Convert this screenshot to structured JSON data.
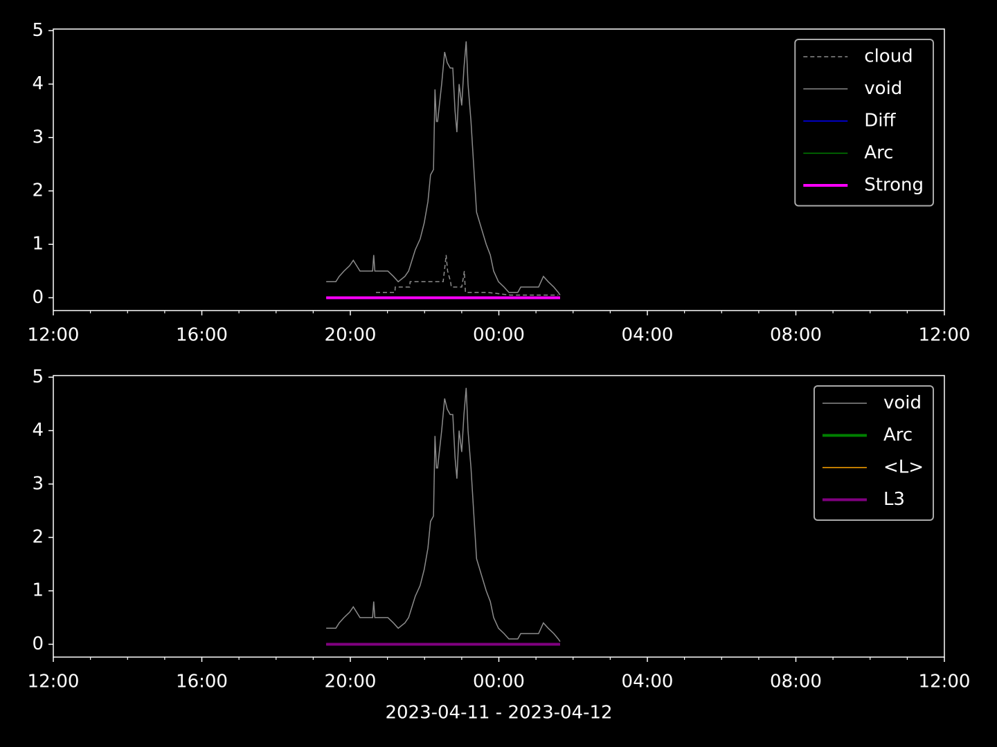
{
  "chart_data": [
    {
      "type": "line",
      "xlim": [
        0,
        24
      ],
      "ylim": [
        -0.24,
        5.03
      ],
      "xticks": [
        {
          "value": 0,
          "label": "12:00"
        },
        {
          "value": 4,
          "label": "16:00"
        },
        {
          "value": 8,
          "label": "20:00"
        },
        {
          "value": 12,
          "label": "00:00"
        },
        {
          "value": 16,
          "label": "04:00"
        },
        {
          "value": 20,
          "label": "08:00"
        },
        {
          "value": 24,
          "label": "12:00"
        }
      ],
      "xminorticks": [
        1,
        2,
        3,
        5,
        6,
        7,
        9,
        10,
        11,
        13,
        14,
        15,
        17,
        18,
        19,
        21,
        22,
        23
      ],
      "yticks": [
        0,
        1,
        2,
        3,
        4,
        5
      ],
      "legend": "upper right",
      "series": [
        {
          "name": "cloud",
          "color": "#8c8c8c",
          "linestyle": "dashed",
          "linewidth": 1.5,
          "x": [
            8.69,
            9.2,
            9.21,
            9.3,
            9.31,
            9.6,
            9.61,
            10.5,
            10.55,
            10.58,
            10.62,
            10.7,
            10.72,
            11.0,
            11.05,
            11.07,
            11.1,
            11.7,
            12.3,
            13.6
          ],
          "values": [
            0.1,
            0.1,
            0.2,
            0.2,
            0.2,
            0.2,
            0.3,
            0.3,
            0.6,
            0.8,
            0.5,
            0.3,
            0.2,
            0.2,
            0.4,
            0.5,
            0.1,
            0.1,
            0.05,
            0.05
          ]
        },
        {
          "name": "void",
          "color": "#8c8c8c",
          "linestyle": "solid",
          "linewidth": 1.5,
          "x": [
            7.35,
            7.61,
            7.7,
            7.83,
            7.98,
            8.08,
            8.17,
            8.26,
            8.6,
            8.63,
            8.66,
            9.01,
            9.16,
            9.29,
            9.47,
            9.57,
            9.66,
            9.75,
            9.88,
            9.99,
            10.09,
            10.16,
            10.24,
            10.28,
            10.32,
            10.35,
            10.46,
            10.54,
            10.61,
            10.69,
            10.76,
            10.82,
            10.87,
            10.93,
            11.0,
            11.06,
            11.12,
            11.17,
            11.25,
            11.32,
            11.4,
            11.53,
            11.66,
            11.77,
            11.86,
            11.99,
            12.14,
            12.27,
            12.51,
            12.59,
            13.07,
            13.2,
            13.33,
            13.48,
            13.6,
            13.65
          ],
          "values": [
            0.3,
            0.3,
            0.4,
            0.5,
            0.6,
            0.7,
            0.6,
            0.5,
            0.5,
            0.8,
            0.5,
            0.5,
            0.4,
            0.3,
            0.4,
            0.5,
            0.7,
            0.9,
            1.1,
            1.4,
            1.8,
            2.3,
            2.4,
            3.9,
            3.3,
            3.3,
            4.0,
            4.6,
            4.4,
            4.3,
            4.3,
            3.5,
            3.1,
            4.0,
            3.6,
            4.3,
            4.8,
            4.0,
            3.3,
            2.5,
            1.6,
            1.3,
            1.0,
            0.8,
            0.5,
            0.3,
            0.2,
            0.1,
            0.1,
            0.2,
            0.2,
            0.4,
            0.3,
            0.2,
            0.1,
            0.05
          ]
        },
        {
          "name": "Diff",
          "color": "#0000ff",
          "linestyle": "solid",
          "linewidth": 1.5,
          "x": [
            7.35,
            13.65
          ],
          "values": [
            0,
            0
          ]
        },
        {
          "name": "Arc",
          "color": "#008000",
          "linestyle": "solid",
          "linewidth": 1.5,
          "x": [
            7.35,
            13.65
          ],
          "values": [
            0,
            0
          ]
        },
        {
          "name": "Strong",
          "color": "#ff00ff",
          "linestyle": "solid",
          "linewidth": 4,
          "x": [
            7.35,
            13.65
          ],
          "values": [
            0,
            0
          ]
        }
      ]
    },
    {
      "type": "line",
      "xlim": [
        0,
        24
      ],
      "ylim": [
        -0.24,
        5.03
      ],
      "xlabel": "2023-04-11 - 2023-04-12",
      "xticks": [
        {
          "value": 0,
          "label": "12:00"
        },
        {
          "value": 4,
          "label": "16:00"
        },
        {
          "value": 8,
          "label": "20:00"
        },
        {
          "value": 12,
          "label": "00:00"
        },
        {
          "value": 16,
          "label": "04:00"
        },
        {
          "value": 20,
          "label": "08:00"
        },
        {
          "value": 24,
          "label": "12:00"
        }
      ],
      "xminorticks": [
        1,
        2,
        3,
        5,
        6,
        7,
        9,
        10,
        11,
        13,
        14,
        15,
        17,
        18,
        19,
        21,
        22,
        23
      ],
      "yticks": [
        0,
        1,
        2,
        3,
        4,
        5
      ],
      "legend": "upper right",
      "series": [
        {
          "name": "void",
          "color": "#8c8c8c",
          "linestyle": "solid",
          "linewidth": 1.5,
          "x": [
            7.35,
            7.61,
            7.7,
            7.83,
            7.98,
            8.08,
            8.17,
            8.26,
            8.6,
            8.63,
            8.66,
            9.01,
            9.16,
            9.29,
            9.47,
            9.57,
            9.66,
            9.75,
            9.88,
            9.99,
            10.09,
            10.16,
            10.24,
            10.28,
            10.32,
            10.35,
            10.46,
            10.54,
            10.61,
            10.69,
            10.76,
            10.82,
            10.87,
            10.93,
            11.0,
            11.06,
            11.12,
            11.17,
            11.25,
            11.32,
            11.4,
            11.53,
            11.66,
            11.77,
            11.86,
            11.99,
            12.14,
            12.27,
            12.51,
            12.59,
            13.07,
            13.2,
            13.33,
            13.48,
            13.6,
            13.65
          ],
          "values": [
            0.3,
            0.3,
            0.4,
            0.5,
            0.6,
            0.7,
            0.6,
            0.5,
            0.5,
            0.8,
            0.5,
            0.5,
            0.4,
            0.3,
            0.4,
            0.5,
            0.7,
            0.9,
            1.1,
            1.4,
            1.8,
            2.3,
            2.4,
            3.9,
            3.3,
            3.3,
            4.0,
            4.6,
            4.4,
            4.3,
            4.3,
            3.5,
            3.1,
            4.0,
            3.6,
            4.3,
            4.8,
            4.0,
            3.3,
            2.5,
            1.6,
            1.3,
            1.0,
            0.8,
            0.5,
            0.3,
            0.2,
            0.1,
            0.1,
            0.2,
            0.2,
            0.4,
            0.3,
            0.2,
            0.1,
            0.05
          ]
        },
        {
          "name": "Arc",
          "color": "#008000",
          "linestyle": "solid",
          "linewidth": 4,
          "x": [
            7.35,
            13.65
          ],
          "values": [
            0,
            0
          ]
        },
        {
          "name": "<L>",
          "color": "#ffa500",
          "linestyle": "solid",
          "linewidth": 1.5,
          "x": [
            7.35,
            13.65
          ],
          "values": [
            0,
            0
          ]
        },
        {
          "name": "L3",
          "color": "#800080",
          "linestyle": "solid",
          "linewidth": 4,
          "x": [
            7.35,
            13.65
          ],
          "values": [
            0,
            0
          ]
        }
      ]
    }
  ]
}
